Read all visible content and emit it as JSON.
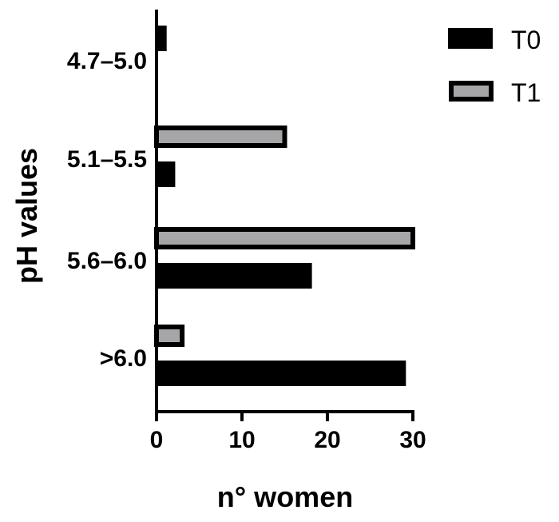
{
  "chart_data": {
    "type": "bar",
    "orientation": "horizontal",
    "categories": [
      "4.7–5.0",
      "5.1–5.5",
      "5.6–6.0",
      ">6.0"
    ],
    "series": [
      {
        "name": "T0",
        "values": [
          1,
          2,
          18,
          29
        ],
        "color": "#000000"
      },
      {
        "name": "T1",
        "values": [
          0,
          15,
          30,
          3
        ],
        "color": "#a6a6a8"
      }
    ],
    "xlabel": "n° women",
    "ylabel": "pH values",
    "xlim": [
      0,
      30
    ],
    "xticks": [
      "0",
      "10",
      "20",
      "30"
    ],
    "grid": false,
    "legend_position": "top-right"
  }
}
